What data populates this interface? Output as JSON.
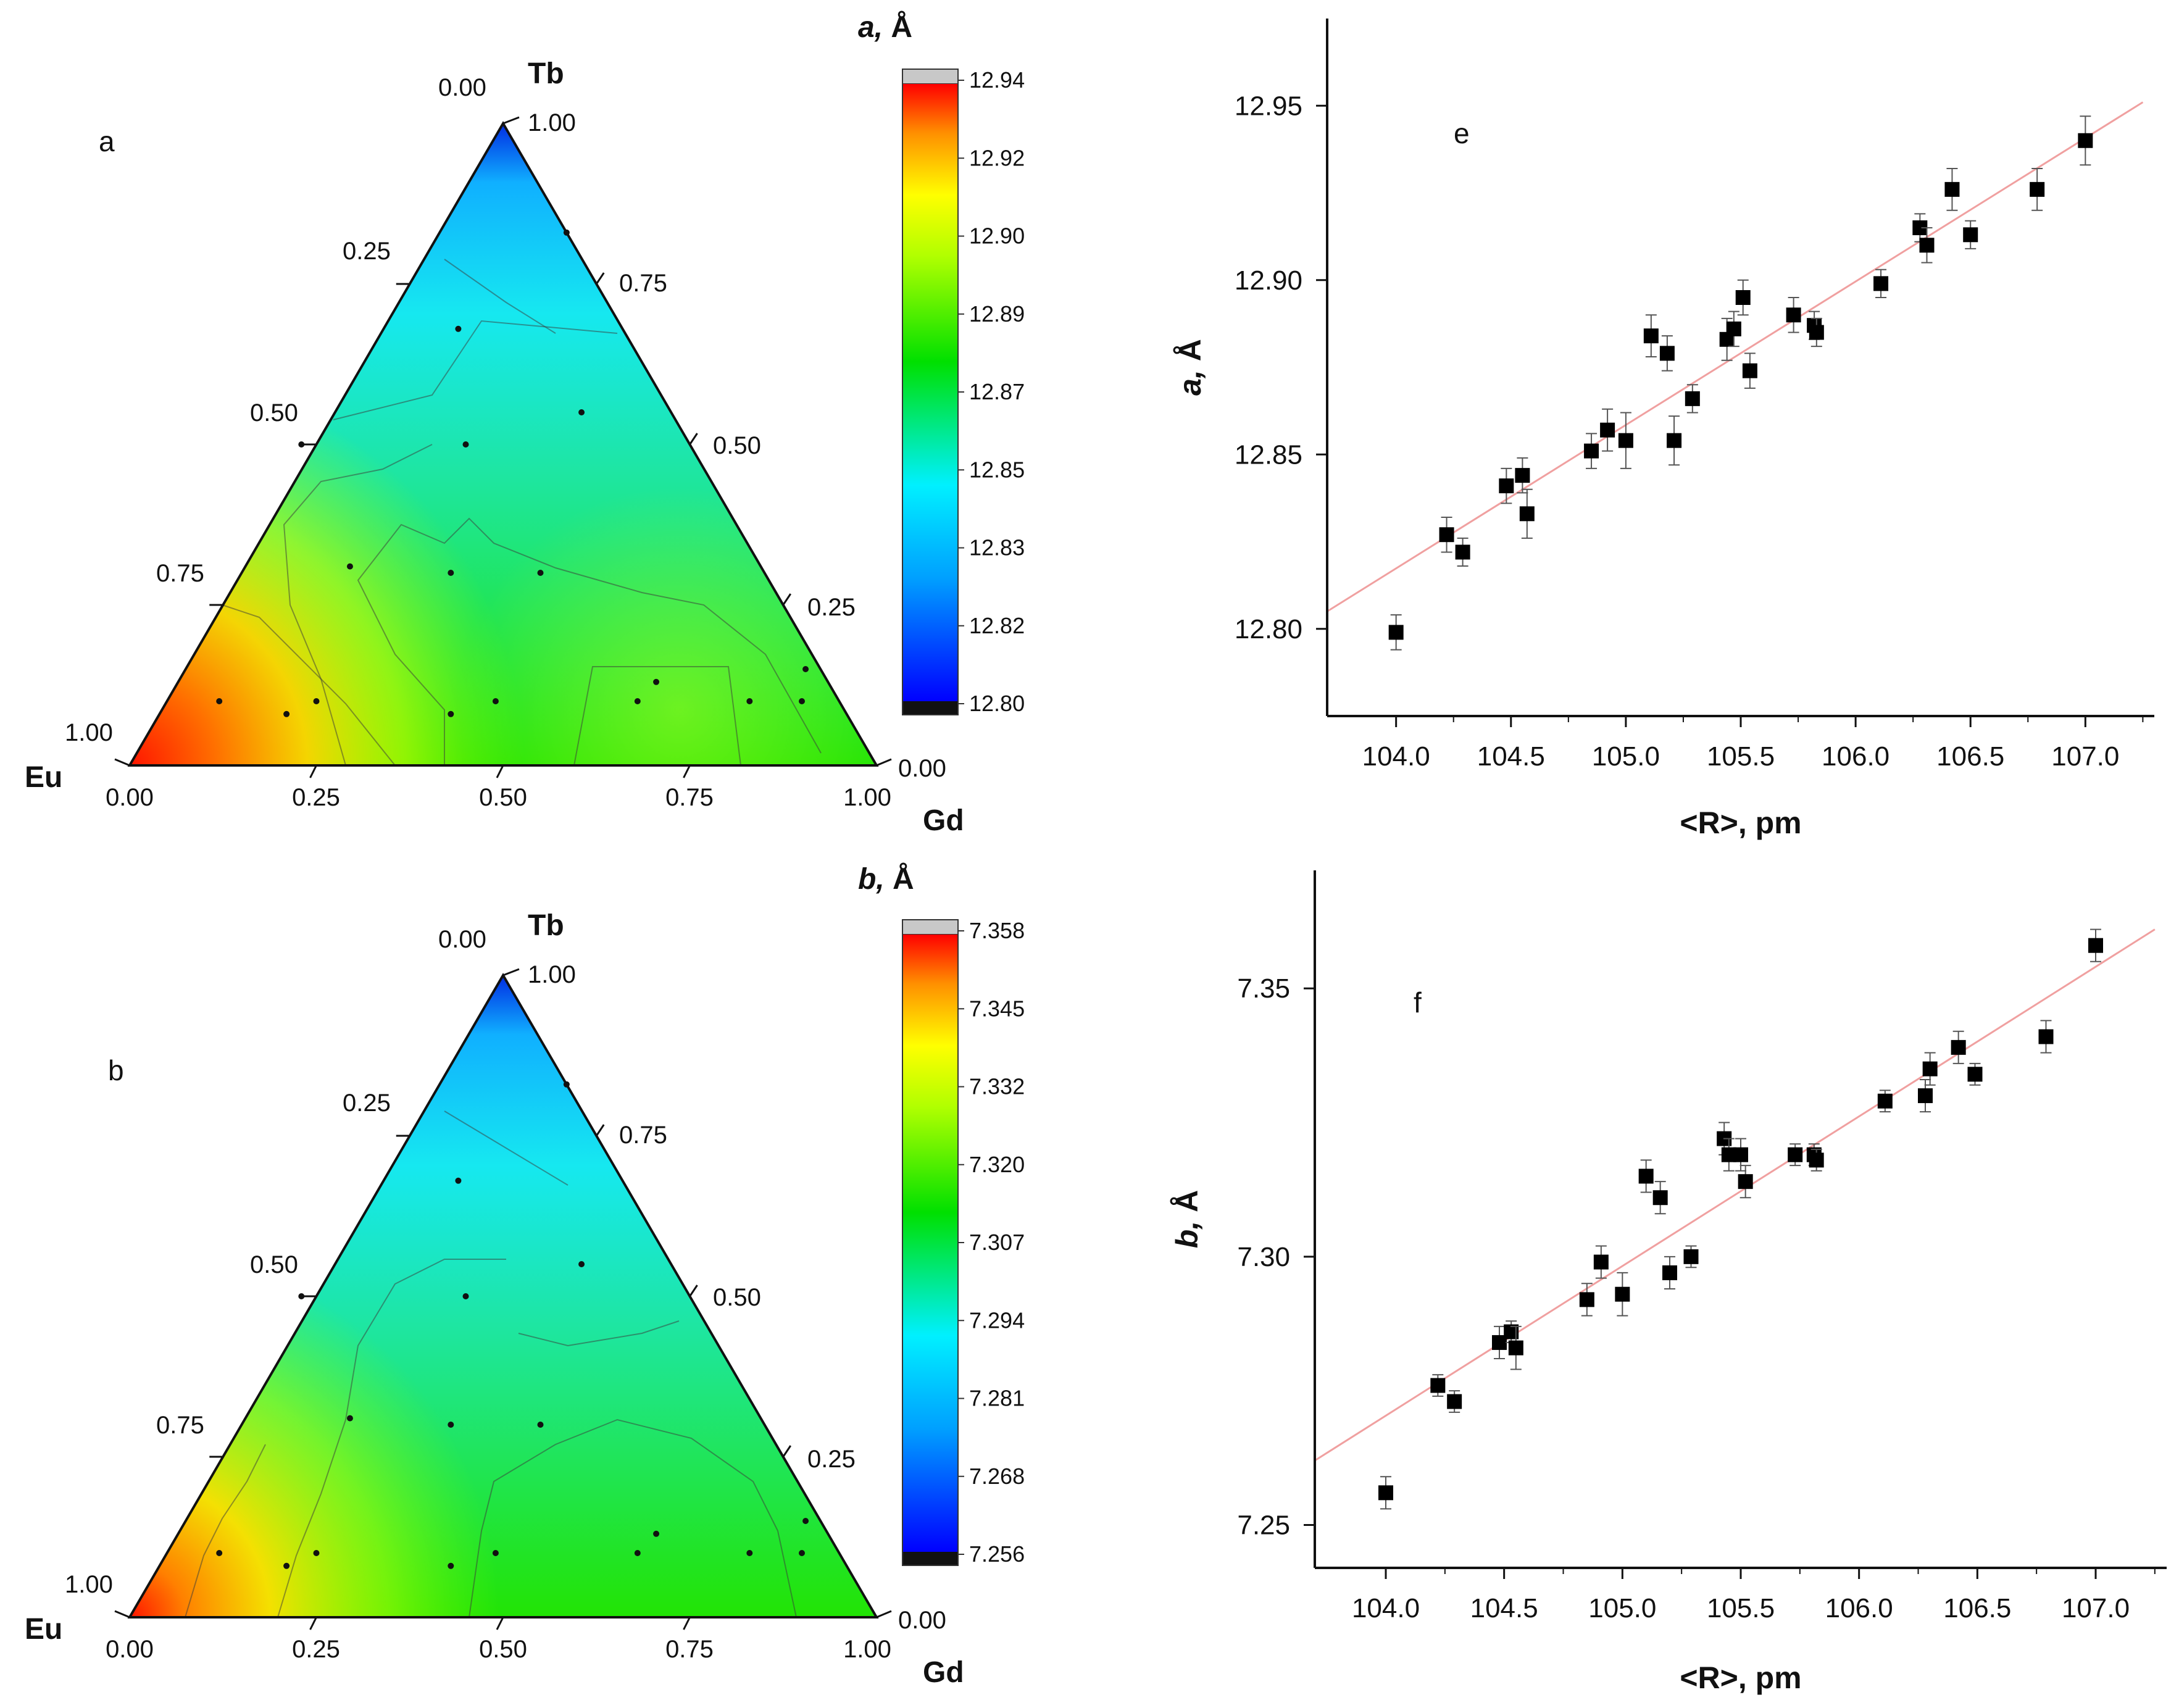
{
  "figure": {
    "ternary_panels": [
      {
        "panel_label": "a",
        "vertex_labels": {
          "top": "Tb",
          "left": "Eu",
          "right": "Gd"
        },
        "tick_labels": [
          "0.00",
          "0.25",
          "0.50",
          "0.75",
          "1.00"
        ],
        "colorbar": {
          "title_var": "a,",
          "title_unit": " Å",
          "tick_labels": [
            "12.94",
            "12.92",
            "12.90",
            "12.89",
            "12.87",
            "12.85",
            "12.83",
            "12.82",
            "12.80"
          ]
        }
      },
      {
        "panel_label": "b",
        "vertex_labels": {
          "top": "Tb",
          "left": "Eu",
          "right": "Gd"
        },
        "tick_labels": [
          "0.00",
          "0.25",
          "0.50",
          "0.75",
          "1.00"
        ],
        "colorbar": {
          "title_var": "b,",
          "title_unit": " Å",
          "tick_labels": [
            "7.358",
            "7.345",
            "7.332",
            "7.320",
            "7.307",
            "7.294",
            "7.281",
            "7.268",
            "7.256"
          ]
        }
      }
    ]
  },
  "chart_data": [
    {
      "panel": "a",
      "type": "heatmap",
      "subtype": "ternary-contour",
      "components": [
        "Tb",
        "Eu",
        "Gd"
      ],
      "value_range": [
        12.8,
        12.94
      ],
      "trend": "highest near Eu corner, lowest near Tb corner",
      "sample_points_eu_tb": [
        [
          0.83,
          0.1
        ],
        [
          0.7,
          0.1
        ],
        [
          0.27,
          0.1
        ],
        [
          0.05,
          0.1
        ],
        [
          0.75,
          0.08
        ],
        [
          0.46,
          0.1
        ],
        [
          0.53,
          0.08
        ],
        [
          0.23,
          0.13
        ],
        [
          0.12,
          0.1
        ],
        [
          0.42,
          0.3
        ],
        [
          0.52,
          0.5
        ],
        [
          0.3,
          0.5
        ],
        [
          0.12,
          0.55
        ],
        [
          0.55,
          0.31
        ],
        [
          0.3,
          0.3
        ],
        [
          0.22,
          0.68
        ],
        [
          0.0,
          0.83
        ],
        [
          0.02,
          0.15
        ]
      ]
    },
    {
      "panel": "b",
      "type": "heatmap",
      "subtype": "ternary-contour",
      "components": [
        "Tb",
        "Eu",
        "Gd"
      ],
      "value_range": [
        7.256,
        7.358
      ],
      "trend": "highest near Eu corner, lowest near Tb corner",
      "sample_points_eu_tb": [
        [
          0.83,
          0.1
        ],
        [
          0.7,
          0.1
        ],
        [
          0.27,
          0.1
        ],
        [
          0.05,
          0.1
        ],
        [
          0.75,
          0.08
        ],
        [
          0.46,
          0.1
        ],
        [
          0.53,
          0.08
        ],
        [
          0.23,
          0.13
        ],
        [
          0.12,
          0.1
        ],
        [
          0.42,
          0.3
        ],
        [
          0.52,
          0.5
        ],
        [
          0.3,
          0.5
        ],
        [
          0.12,
          0.55
        ],
        [
          0.55,
          0.31
        ],
        [
          0.3,
          0.3
        ],
        [
          0.22,
          0.68
        ],
        [
          0.0,
          0.83
        ],
        [
          0.02,
          0.15
        ]
      ]
    },
    {
      "panel": "e",
      "type": "scatter",
      "panel_label": "e",
      "xlabel": "<R>, pm",
      "ylabel_var": "a,",
      "ylabel_unit": " Å",
      "xlim": [
        103.7,
        107.3
      ],
      "ylim": [
        12.775,
        12.975
      ],
      "xticks": [
        104.0,
        104.5,
        105.0,
        105.5,
        106.0,
        106.5,
        107.0
      ],
      "xtick_labels": [
        "104.0",
        "104.5",
        "105.0",
        "105.5",
        "106.0",
        "106.5",
        "107.0"
      ],
      "yticks": [
        12.8,
        12.85,
        12.9,
        12.95
      ],
      "ytick_labels": [
        "12.80",
        "12.85",
        "12.90",
        "12.95"
      ],
      "fit_line": {
        "x": [
          103.7,
          107.25
        ],
        "y": [
          12.805,
          12.951
        ]
      },
      "points": [
        [
          104.0,
          12.799,
          0.005
        ],
        [
          104.22,
          12.827,
          0.005
        ],
        [
          104.29,
          12.822,
          0.004
        ],
        [
          104.48,
          12.841,
          0.005
        ],
        [
          104.55,
          12.844,
          0.005
        ],
        [
          104.57,
          12.833,
          0.007
        ],
        [
          104.85,
          12.851,
          0.005
        ],
        [
          104.92,
          12.857,
          0.006
        ],
        [
          105.0,
          12.854,
          0.008
        ],
        [
          105.11,
          12.884,
          0.006
        ],
        [
          105.18,
          12.879,
          0.005
        ],
        [
          105.21,
          12.854,
          0.007
        ],
        [
          105.29,
          12.866,
          0.004
        ],
        [
          105.44,
          12.883,
          0.006
        ],
        [
          105.47,
          12.886,
          0.005
        ],
        [
          105.51,
          12.895,
          0.005
        ],
        [
          105.54,
          12.874,
          0.005
        ],
        [
          105.73,
          12.89,
          0.005
        ],
        [
          105.82,
          12.887,
          0.004
        ],
        [
          105.83,
          12.885,
          0.004
        ],
        [
          106.11,
          12.899,
          0.004
        ],
        [
          106.28,
          12.915,
          0.004
        ],
        [
          106.31,
          12.91,
          0.005
        ],
        [
          106.42,
          12.926,
          0.006
        ],
        [
          106.5,
          12.913,
          0.004
        ],
        [
          106.79,
          12.926,
          0.006
        ],
        [
          107.0,
          12.94,
          0.007
        ]
      ]
    },
    {
      "panel": "f",
      "type": "scatter",
      "panel_label": "f",
      "xlabel": "<R>, pm",
      "ylabel_var": "b,",
      "ylabel_unit": " Å",
      "xlim": [
        103.7,
        107.3
      ],
      "ylim": [
        7.242,
        7.372
      ],
      "xticks": [
        104.0,
        104.5,
        105.0,
        105.5,
        106.0,
        106.5,
        107.0
      ],
      "xtick_labels": [
        "104.0",
        "104.5",
        "105.0",
        "105.5",
        "106.0",
        "106.5",
        "107.0"
      ],
      "yticks": [
        7.25,
        7.3,
        7.35
      ],
      "ytick_labels": [
        "7.25",
        "7.30",
        "7.35"
      ],
      "fit_line": {
        "x": [
          103.7,
          107.25
        ],
        "y": [
          7.262,
          7.361
        ]
      },
      "points": [
        [
          104.0,
          7.256,
          0.003
        ],
        [
          104.22,
          7.276,
          0.002
        ],
        [
          104.29,
          7.273,
          0.002
        ],
        [
          104.48,
          7.284,
          0.003
        ],
        [
          104.53,
          7.286,
          0.002
        ],
        [
          104.55,
          7.283,
          0.004
        ],
        [
          104.85,
          7.292,
          0.003
        ],
        [
          104.91,
          7.299,
          0.003
        ],
        [
          105.0,
          7.293,
          0.004
        ],
        [
          105.1,
          7.315,
          0.003
        ],
        [
          105.16,
          7.311,
          0.003
        ],
        [
          105.2,
          7.297,
          0.003
        ],
        [
          105.29,
          7.3,
          0.002
        ],
        [
          105.43,
          7.322,
          0.003
        ],
        [
          105.45,
          7.319,
          0.003
        ],
        [
          105.5,
          7.319,
          0.003
        ],
        [
          105.52,
          7.314,
          0.003
        ],
        [
          105.73,
          7.319,
          0.002
        ],
        [
          105.81,
          7.319,
          0.002
        ],
        [
          105.82,
          7.318,
          0.002
        ],
        [
          106.11,
          7.329,
          0.002
        ],
        [
          106.28,
          7.33,
          0.003
        ],
        [
          106.3,
          7.335,
          0.003
        ],
        [
          106.42,
          7.339,
          0.003
        ],
        [
          106.49,
          7.334,
          0.002
        ],
        [
          106.79,
          7.341,
          0.003
        ],
        [
          107.0,
          7.358,
          0.003
        ]
      ]
    }
  ]
}
